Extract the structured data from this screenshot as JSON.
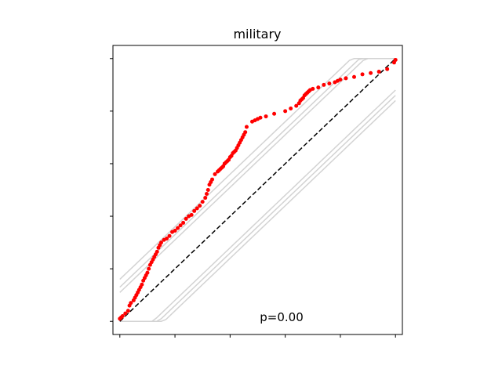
{
  "chart_data": {
    "type": "line",
    "title": "military",
    "xlabel": "",
    "ylabel": "",
    "xlim": [
      -0.025,
      1.025
    ],
    "ylim": [
      -0.05,
      1.05
    ],
    "xticks": [
      0,
      0.2,
      0.4,
      0.6,
      0.8,
      1.0
    ],
    "yticks": [
      0,
      0.2,
      0.4,
      0.6,
      0.8,
      1.0
    ],
    "tick_labels_visible": false,
    "grid": false,
    "annotation": "p=0.00",
    "colors": {
      "points": "#ff0000",
      "reference": "#000000",
      "bands": "#d3d3d3"
    },
    "reference_line": {
      "style": "dashed",
      "x": [
        0,
        1
      ],
      "y": [
        0,
        1
      ]
    },
    "bands": [
      {
        "x": [
          0,
          1
        ],
        "y": [
          0.16,
          1.16
        ]
      },
      {
        "x": [
          0,
          1
        ],
        "y": [
          0.13,
          1.13
        ]
      },
      {
        "x": [
          0,
          1
        ],
        "y": [
          0.11,
          1.11
        ]
      },
      {
        "x": [
          0,
          1
        ],
        "y": [
          -0.16,
          0.84
        ]
      },
      {
        "x": [
          0,
          1
        ],
        "y": [
          -0.14,
          0.86
        ]
      },
      {
        "x": [
          0,
          1
        ],
        "y": [
          -0.12,
          0.88
        ]
      }
    ],
    "points": {
      "x": [
        0.0,
        0.005,
        0.01,
        0.02,
        0.03,
        0.035,
        0.04,
        0.05,
        0.055,
        0.06,
        0.065,
        0.07,
        0.075,
        0.08,
        0.085,
        0.09,
        0.095,
        0.1,
        0.105,
        0.11,
        0.115,
        0.12,
        0.125,
        0.13,
        0.135,
        0.14,
        0.145,
        0.15,
        0.16,
        0.17,
        0.18,
        0.19,
        0.2,
        0.21,
        0.22,
        0.23,
        0.24,
        0.25,
        0.26,
        0.27,
        0.28,
        0.29,
        0.3,
        0.31,
        0.315,
        0.32,
        0.325,
        0.33,
        0.335,
        0.345,
        0.355,
        0.36,
        0.365,
        0.37,
        0.375,
        0.38,
        0.385,
        0.39,
        0.395,
        0.4,
        0.405,
        0.41,
        0.415,
        0.42,
        0.425,
        0.43,
        0.435,
        0.44,
        0.445,
        0.45,
        0.455,
        0.46,
        0.48,
        0.49,
        0.5,
        0.51,
        0.53,
        0.56,
        0.6,
        0.62,
        0.64,
        0.65,
        0.655,
        0.66,
        0.665,
        0.67,
        0.675,
        0.68,
        0.685,
        0.69,
        0.7,
        0.72,
        0.74,
        0.76,
        0.78,
        0.79,
        0.8,
        0.82,
        0.85,
        0.88,
        0.91,
        0.94,
        0.97,
        0.995,
        1.0
      ],
      "y": [
        0.01,
        0.015,
        0.02,
        0.03,
        0.04,
        0.06,
        0.07,
        0.08,
        0.09,
        0.1,
        0.11,
        0.12,
        0.13,
        0.14,
        0.155,
        0.165,
        0.175,
        0.185,
        0.2,
        0.215,
        0.225,
        0.235,
        0.245,
        0.255,
        0.265,
        0.28,
        0.29,
        0.3,
        0.31,
        0.315,
        0.325,
        0.34,
        0.345,
        0.355,
        0.365,
        0.375,
        0.39,
        0.4,
        0.405,
        0.42,
        0.43,
        0.44,
        0.455,
        0.47,
        0.485,
        0.5,
        0.52,
        0.53,
        0.54,
        0.56,
        0.57,
        0.575,
        0.58,
        0.585,
        0.59,
        0.6,
        0.605,
        0.61,
        0.615,
        0.625,
        0.63,
        0.64,
        0.645,
        0.65,
        0.66,
        0.67,
        0.68,
        0.69,
        0.7,
        0.71,
        0.72,
        0.74,
        0.76,
        0.765,
        0.77,
        0.775,
        0.78,
        0.79,
        0.8,
        0.81,
        0.82,
        0.83,
        0.84,
        0.845,
        0.85,
        0.86,
        0.865,
        0.87,
        0.875,
        0.88,
        0.885,
        0.89,
        0.9,
        0.905,
        0.91,
        0.915,
        0.92,
        0.925,
        0.93,
        0.94,
        0.945,
        0.95,
        0.96,
        0.985,
        0.995
      ]
    }
  }
}
